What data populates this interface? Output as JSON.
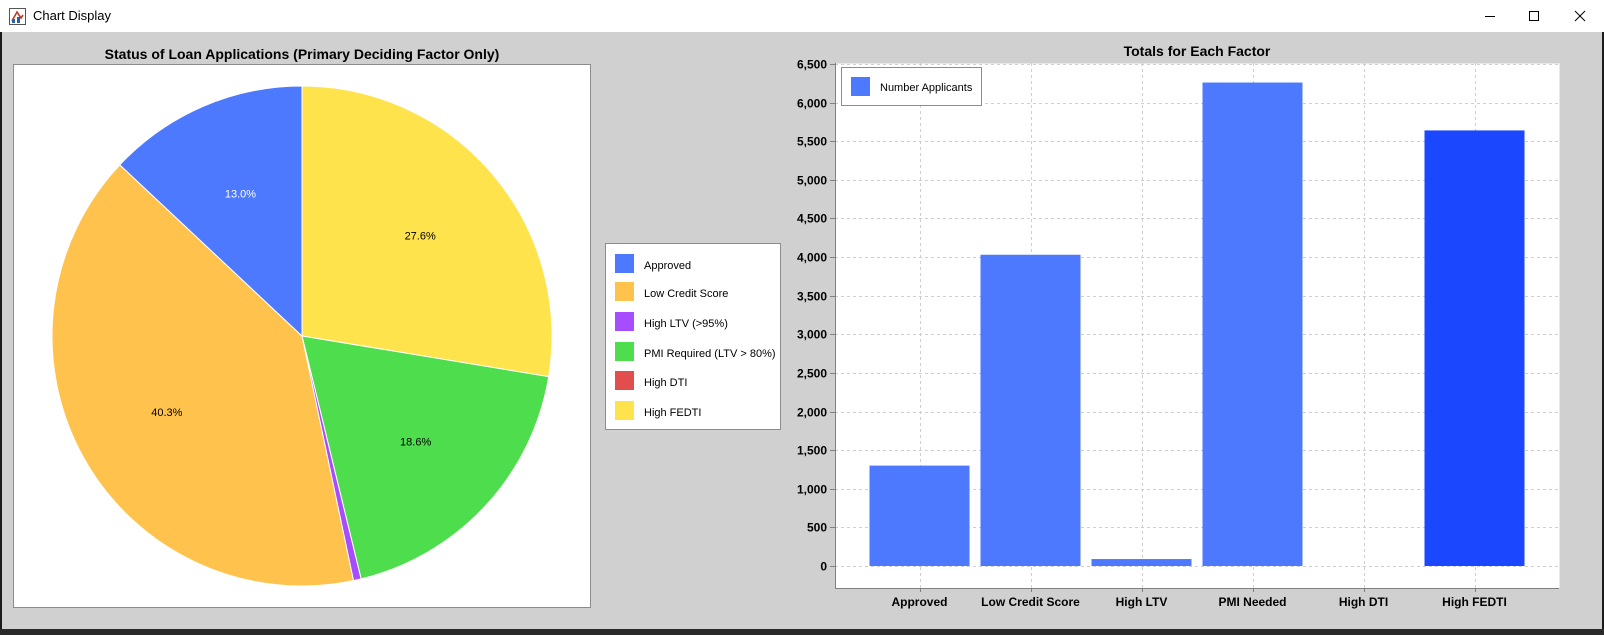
{
  "window": {
    "title": "Chart Display",
    "buttons": [
      "minimize",
      "maximize",
      "close"
    ]
  },
  "colors": {
    "approved": "#4d79ff",
    "low_credit": "#ffc34d",
    "high_ltv": "#a64dff",
    "pmi": "#4ddd4d",
    "high_dti": "#e24d4d",
    "high_fedti": "#ffe34d",
    "bar": "#4d79ff",
    "bar_highlight": "#1a47ff",
    "panel_bg": "#d0d0d0",
    "plot_bg": "#ffffff",
    "grid": "#cfcfcf"
  },
  "chart_data": [
    {
      "type": "pie",
      "title": "Status of Loan Applications (Primary Deciding Factor Only)",
      "start": "12 o'clock",
      "direction": "clockwise",
      "slices": [
        {
          "label": "High FEDTI",
          "value": 27.6,
          "label_text": "27.6%",
          "color_key": "high_fedti",
          "text_color": "#000000"
        },
        {
          "label": "PMI Required (LTV > 80%)",
          "value": 18.6,
          "label_text": "18.6%",
          "color_key": "pmi",
          "text_color": "#000000"
        },
        {
          "label": "High LTV (>95%)",
          "value": 0.5,
          "label_text": "",
          "color_key": "high_ltv",
          "text_color": "#000000"
        },
        {
          "label": "Low Credit Score",
          "value": 40.3,
          "label_text": "40.3%",
          "color_key": "low_credit",
          "text_color": "#000000"
        },
        {
          "label": "Approved",
          "value": 13.0,
          "label_text": "13.0%",
          "color_key": "approved",
          "text_color": "#ffffff"
        }
      ],
      "legend": [
        {
          "label": "Approved",
          "color_key": "approved"
        },
        {
          "label": "Low Credit Score",
          "color_key": "low_credit"
        },
        {
          "label": "High LTV (>95%)",
          "color_key": "high_ltv"
        },
        {
          "label": "PMI Required (LTV > 80%)",
          "color_key": "pmi"
        },
        {
          "label": "High DTI",
          "color_key": "high_dti"
        },
        {
          "label": "High FEDTI",
          "color_key": "high_fedti"
        }
      ],
      "legend_position": "right"
    },
    {
      "type": "bar",
      "title": "Totals for Each Factor",
      "categories": [
        "Approved",
        "Low Credit Score",
        "High LTV",
        "PMI Needed",
        "High DTI",
        "High FEDTI"
      ],
      "series": [
        {
          "name": "Number Applicants",
          "values": [
            1300,
            4030,
            90,
            6260,
            0,
            5640
          ]
        }
      ],
      "highlight_index": 5,
      "ylim": [
        0,
        6500
      ],
      "yticks": [
        0,
        500,
        1000,
        1500,
        2000,
        2500,
        3000,
        3500,
        4000,
        4500,
        5000,
        5500,
        6000,
        6500
      ],
      "ytick_labels": [
        "0",
        "500",
        "1,000",
        "1,500",
        "2,000",
        "2,500",
        "3,000",
        "3,500",
        "4,000",
        "4,500",
        "5,000",
        "5,500",
        "6,000",
        "6,500"
      ],
      "grid": true,
      "legend_position": "top-left"
    }
  ]
}
